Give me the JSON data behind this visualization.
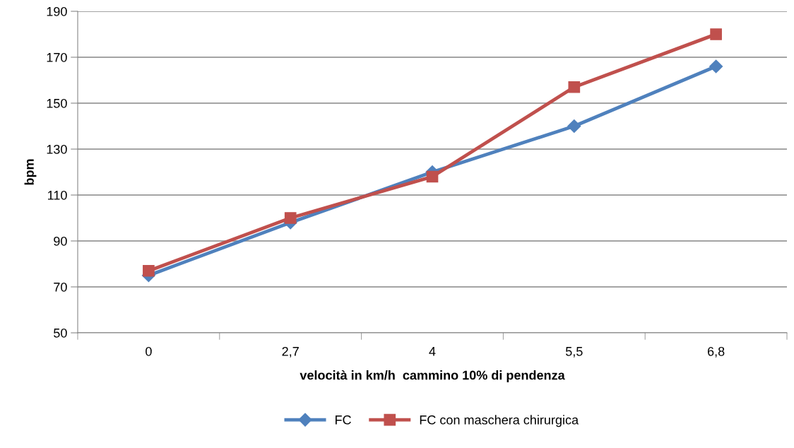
{
  "chart_data": {
    "type": "line",
    "xlabel": "velocità in km/h  cammino 10% di pendenza",
    "ylabel": "bpm",
    "categories": [
      "0",
      "2,7",
      "4",
      "5,5",
      "6,8"
    ],
    "series": [
      {
        "name": "FC",
        "color": "#4f81bd",
        "marker": "diamond",
        "values": [
          75,
          98,
          120,
          140,
          166
        ]
      },
      {
        "name": "FC con maschera chirurgica",
        "color": "#c0504d",
        "marker": "square",
        "values": [
          77,
          100,
          118,
          157,
          180
        ]
      }
    ],
    "ylim": [
      50,
      190
    ],
    "yticks": [
      50,
      70,
      90,
      110,
      130,
      150,
      170,
      190
    ],
    "grid": "y",
    "legend": "bottom",
    "line_style": "solid"
  }
}
